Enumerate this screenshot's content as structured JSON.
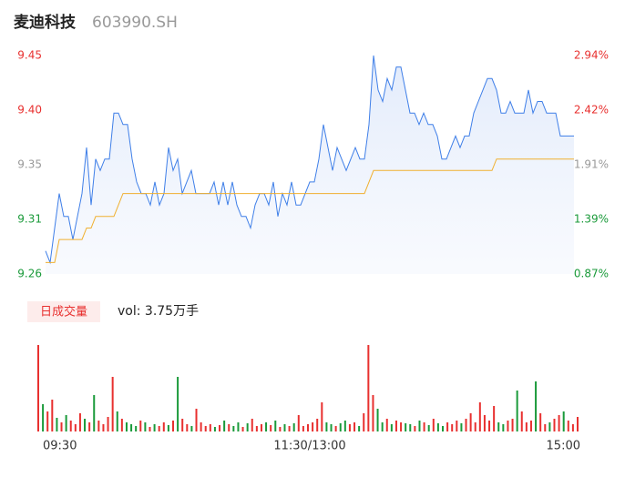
{
  "chart_data": {
    "type": "line",
    "title": "麦迪科技",
    "subtitle": "603990.SH",
    "xlim": [
      0,
      116
    ],
    "xticks": [
      {
        "value": 0,
        "label": "09:30"
      },
      {
        "value": 58,
        "label": "11:30/13:00"
      },
      {
        "value": 116,
        "label": "15:00"
      }
    ],
    "ylim": [
      9.26,
      9.45
    ],
    "yticks": [
      {
        "value": 9.45,
        "label": "9.45"
      },
      {
        "value": 9.4025,
        "label": "9.40"
      },
      {
        "value": 9.355,
        "label": "9.35"
      },
      {
        "value": 9.3075,
        "label": "9.31"
      },
      {
        "value": 9.26,
        "label": "9.26"
      }
    ],
    "y2lim": [
      0.87,
      2.94
    ],
    "y2ticks": [
      {
        "value": 2.94,
        "label": "2.94%"
      },
      {
        "value": 2.4225,
        "label": "2.42%"
      },
      {
        "value": 1.905,
        "label": "1.91%"
      },
      {
        "value": 1.3875,
        "label": "1.39%"
      },
      {
        "value": 0.87,
        "label": "0.87%"
      }
    ],
    "up_color": "#e8302f",
    "down_color": "#1a9a3a",
    "flat_color": "#999999",
    "series": [
      {
        "color": "#3f7fe8",
        "values": [
          9.28,
          9.27,
          9.3,
          9.33,
          9.31,
          9.31,
          9.29,
          9.31,
          9.33,
          9.37,
          9.32,
          9.36,
          9.35,
          9.36,
          9.36,
          9.4,
          9.4,
          9.39,
          9.39,
          9.36,
          9.34,
          9.33,
          9.33,
          9.32,
          9.34,
          9.32,
          9.33,
          9.37,
          9.35,
          9.36,
          9.33,
          9.34,
          9.35,
          9.33,
          9.33,
          9.33,
          9.33,
          9.34,
          9.32,
          9.34,
          9.32,
          9.34,
          9.32,
          9.31,
          9.31,
          9.3,
          9.32,
          9.33,
          9.33,
          9.32,
          9.34,
          9.31,
          9.33,
          9.32,
          9.34,
          9.32,
          9.32,
          9.33,
          9.34,
          9.34,
          9.36,
          9.39,
          9.37,
          9.35,
          9.37,
          9.36,
          9.35,
          9.36,
          9.37,
          9.36,
          9.36,
          9.39,
          9.45,
          9.42,
          9.41,
          9.43,
          9.42,
          9.44,
          9.44,
          9.42,
          9.4,
          9.4,
          9.39,
          9.4,
          9.39,
          9.39,
          9.38,
          9.36,
          9.36,
          9.37,
          9.38,
          9.37,
          9.38,
          9.38,
          9.4,
          9.41,
          9.42,
          9.43,
          9.43,
          9.42,
          9.4,
          9.4,
          9.41,
          9.4,
          9.4,
          9.4,
          9.42,
          9.4,
          9.41,
          9.41,
          9.4,
          9.4,
          9.4,
          9.38,
          9.38,
          9.38,
          9.38
        ]
      },
      {
        "color": "#f0b030",
        "values": [
          9.27,
          9.27,
          9.27,
          9.29,
          9.29,
          9.29,
          9.29,
          9.29,
          9.29,
          9.3,
          9.3,
          9.31,
          9.31,
          9.31,
          9.31,
          9.31,
          9.32,
          9.33,
          9.33,
          9.33,
          9.33,
          9.33,
          9.33,
          9.33,
          9.33,
          9.33,
          9.33,
          9.33,
          9.33,
          9.33,
          9.33,
          9.33,
          9.33,
          9.33,
          9.33,
          9.33,
          9.33,
          9.33,
          9.33,
          9.33,
          9.33,
          9.33,
          9.33,
          9.33,
          9.33,
          9.33,
          9.33,
          9.33,
          9.33,
          9.33,
          9.33,
          9.33,
          9.33,
          9.33,
          9.33,
          9.33,
          9.33,
          9.33,
          9.33,
          9.33,
          9.33,
          9.33,
          9.33,
          9.33,
          9.33,
          9.33,
          9.33,
          9.33,
          9.33,
          9.33,
          9.33,
          9.34,
          9.35,
          9.35,
          9.35,
          9.35,
          9.35,
          9.35,
          9.35,
          9.35,
          9.35,
          9.35,
          9.35,
          9.35,
          9.35,
          9.35,
          9.35,
          9.35,
          9.35,
          9.35,
          9.35,
          9.35,
          9.35,
          9.35,
          9.35,
          9.35,
          9.35,
          9.35,
          9.35,
          9.36,
          9.36,
          9.36,
          9.36,
          9.36,
          9.36,
          9.36,
          9.36,
          9.36,
          9.36,
          9.36,
          9.36,
          9.36,
          9.36,
          9.36,
          9.36,
          9.36,
          9.36
        ]
      }
    ],
    "volume": {
      "label": "日成交量",
      "title": "vol: 3.75万手",
      "values": [
        95,
        30,
        22,
        35,
        15,
        10,
        18,
        12,
        8,
        20,
        14,
        10,
        40,
        12,
        8,
        16,
        60,
        22,
        14,
        10,
        8,
        6,
        12,
        10,
        5,
        8,
        6,
        10,
        7,
        12,
        60,
        14,
        8,
        6,
        25,
        10,
        6,
        8,
        5,
        7,
        12,
        8,
        6,
        10,
        5,
        9,
        14,
        6,
        8,
        10,
        7,
        12,
        5,
        8,
        6,
        9,
        18,
        6,
        8,
        10,
        14,
        32,
        10,
        8,
        6,
        9,
        12,
        8,
        10,
        6,
        20,
        95,
        40,
        25,
        10,
        14,
        8,
        12,
        10,
        9,
        8,
        6,
        12,
        10,
        7,
        14,
        9,
        6,
        10,
        8,
        12,
        9,
        14,
        20,
        10,
        32,
        18,
        12,
        28,
        10,
        8,
        12,
        14,
        45,
        22,
        10,
        12,
        55,
        20,
        8,
        10,
        14,
        18,
        22,
        12,
        8,
        16
      ]
    }
  }
}
